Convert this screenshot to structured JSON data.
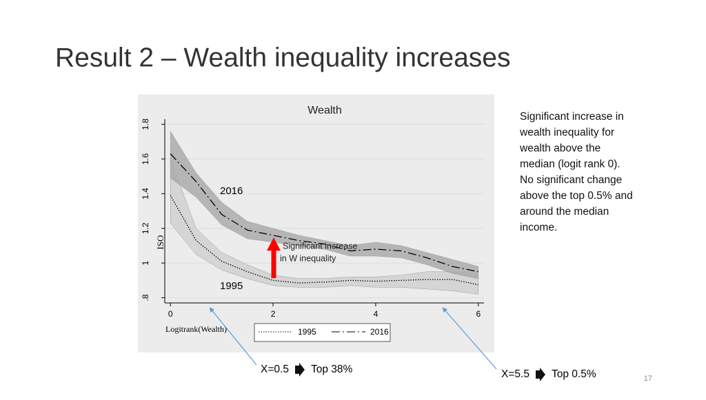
{
  "title": "Result 2 – Wealth inequality increases",
  "note": [
    "Significant increase in",
    "wealth inequality for",
    "wealth above the",
    "median (logit rank 0).",
    "No significant change",
    "above the top 0.5% and",
    "around the median",
    "income."
  ],
  "callouts": [
    {
      "left": "X=0.5",
      "right": "Top 38%"
    },
    {
      "left": "X=5.5",
      "right": "Top 0.5%"
    }
  ],
  "page_number": "17",
  "chart_data": {
    "type": "line",
    "title": "Wealth",
    "x_label": "Logitrank(Wealth)",
    "y_label": "ISO",
    "x": [
      0,
      0.5,
      1,
      1.5,
      2,
      2.5,
      3,
      3.5,
      4,
      4.5,
      5,
      5.5,
      6
    ],
    "series": [
      {
        "name": "1995",
        "color": "#000000",
        "band_color": "#cfcfcf",
        "dash": "dotted",
        "values": [
          1.39,
          1.13,
          1.01,
          0.95,
          0.9,
          0.885,
          0.89,
          0.9,
          0.895,
          0.9,
          0.905,
          0.905,
          0.875
        ],
        "upper": [
          1.6,
          1.2,
          1.06,
          0.99,
          0.93,
          0.91,
          0.91,
          0.92,
          0.92,
          0.93,
          0.95,
          0.95,
          0.93
        ],
        "lower": [
          1.23,
          1.05,
          0.96,
          0.91,
          0.87,
          0.86,
          0.86,
          0.87,
          0.86,
          0.86,
          0.85,
          0.84,
          0.82
        ]
      },
      {
        "name": "2016",
        "color": "#000000",
        "band_color": "#a8a8a8",
        "dash": "dashdot",
        "values": [
          1.63,
          1.47,
          1.28,
          1.19,
          1.16,
          1.13,
          1.11,
          1.07,
          1.08,
          1.07,
          1.03,
          0.98,
          0.95
        ],
        "upper": [
          1.76,
          1.52,
          1.35,
          1.24,
          1.2,
          1.16,
          1.13,
          1.1,
          1.12,
          1.1,
          1.06,
          1.02,
          0.98
        ],
        "lower": [
          1.49,
          1.38,
          1.22,
          1.14,
          1.12,
          1.1,
          1.08,
          1.04,
          1.04,
          1.03,
          0.99,
          0.94,
          0.91
        ]
      }
    ],
    "xlim": [
      -0.11,
      6.11
    ],
    "ylim": [
      0.77,
      1.83
    ],
    "xticks": [
      0,
      2,
      4,
      6
    ],
    "yticks": [
      {
        "value": 0.8,
        "label": ".8"
      },
      1,
      1.2,
      1.4,
      1.6,
      1.8
    ],
    "grid": true,
    "annotations": {
      "label_2016": "2016",
      "label_1995": "1995",
      "arrow_text": [
        "Significant increase",
        "in W inequality"
      ]
    }
  }
}
